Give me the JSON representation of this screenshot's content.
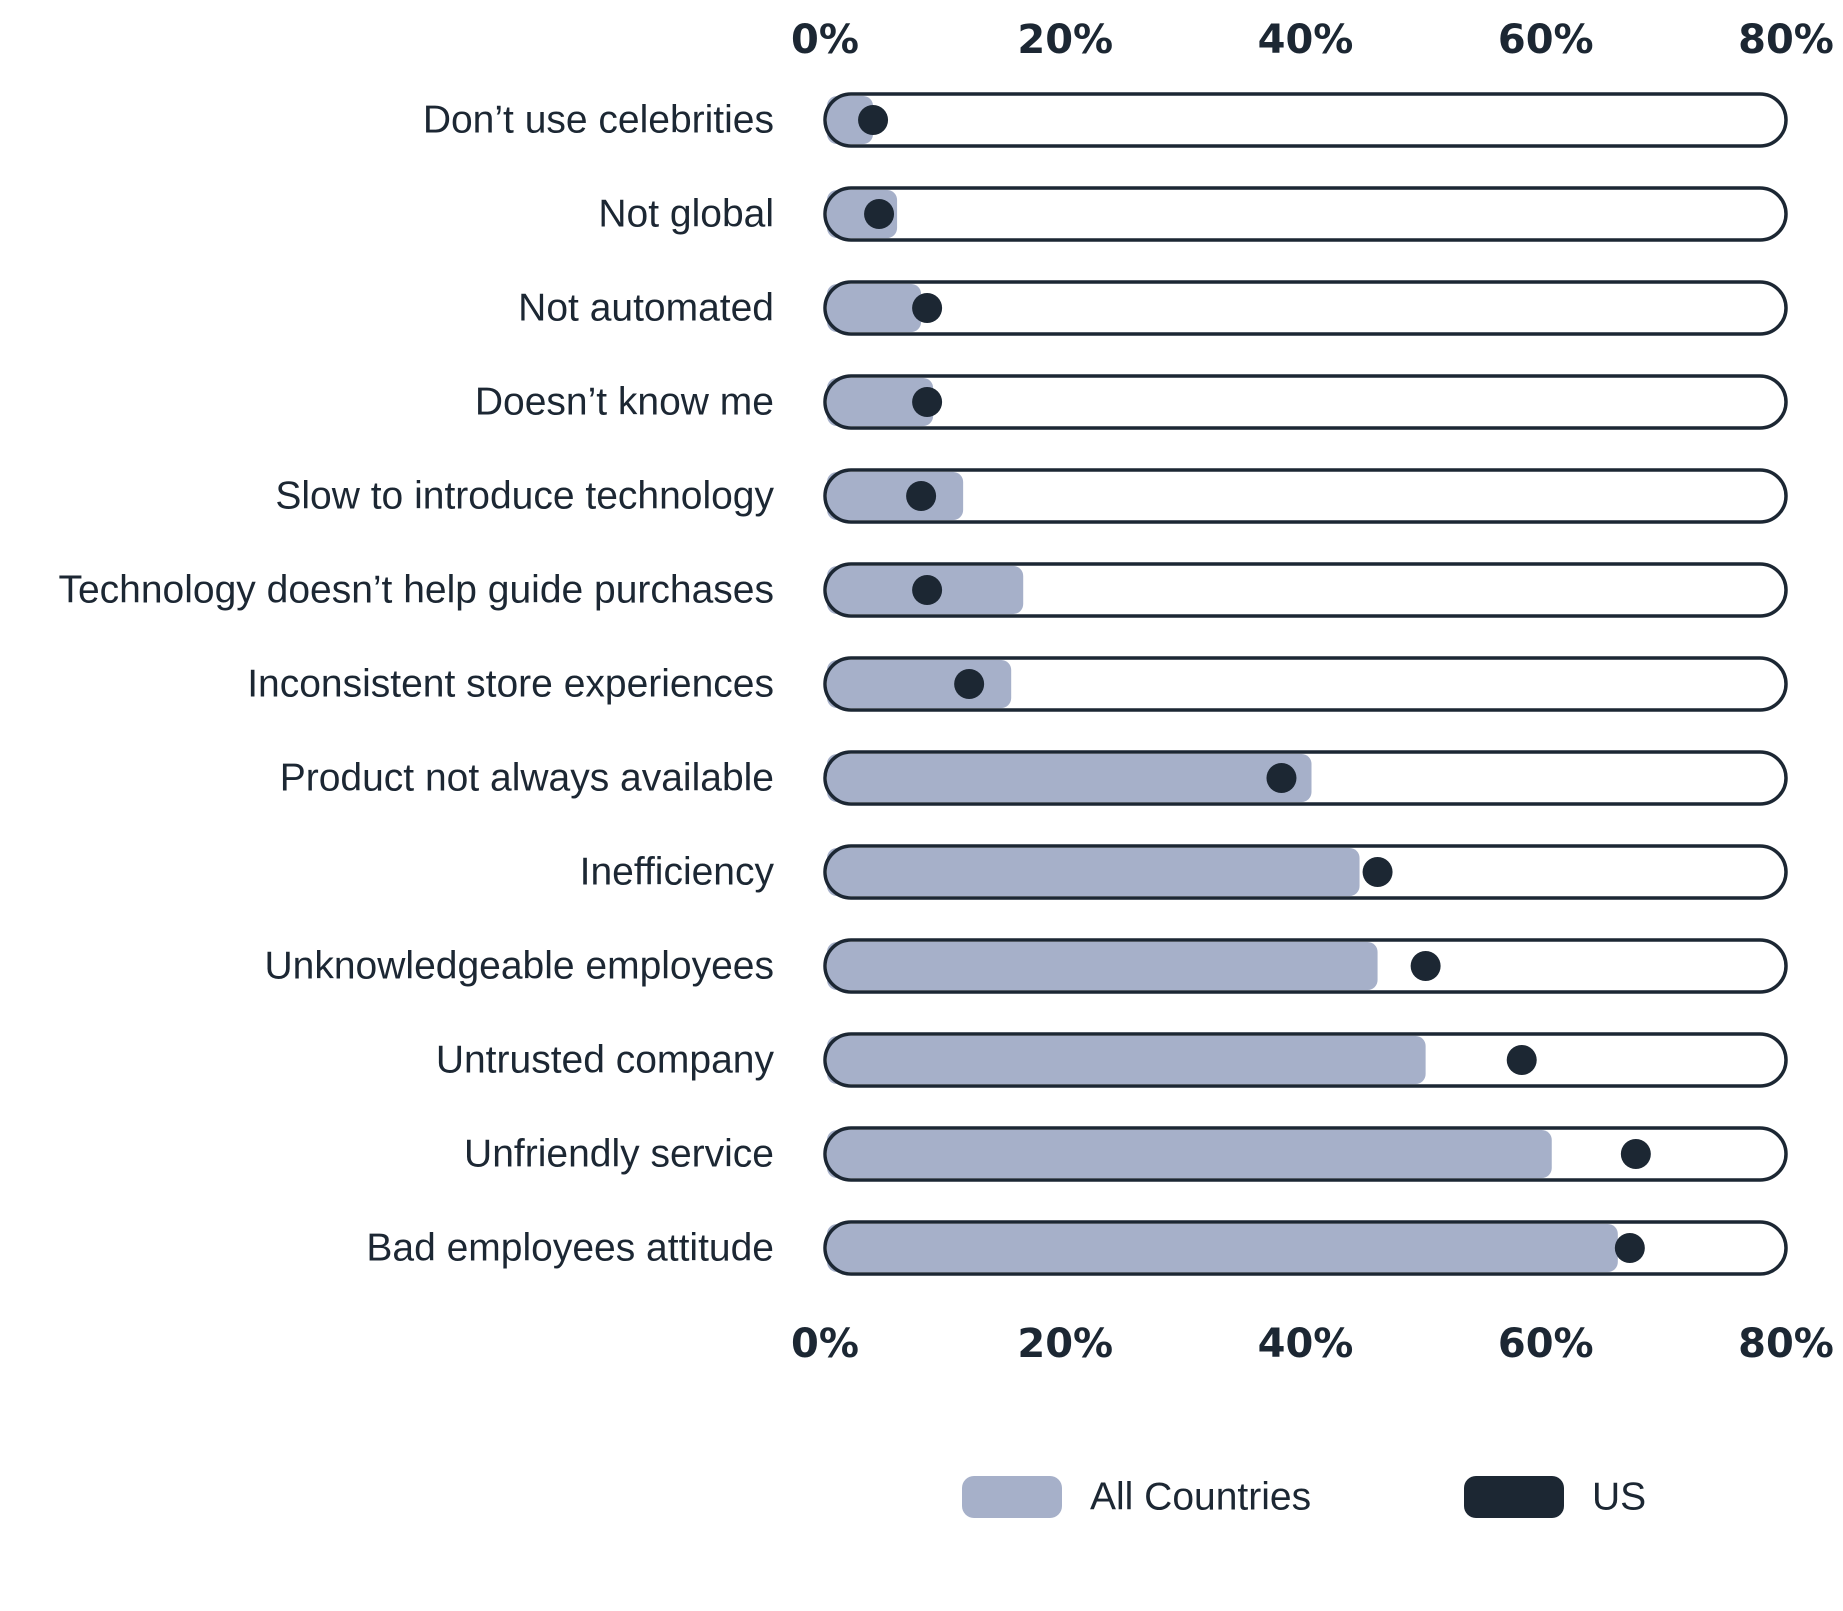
{
  "chart_data": {
    "type": "bar",
    "orientation": "horizontal",
    "categories": [
      "Don’t use celebrities",
      "Not global",
      "Not automated",
      "Doesn’t know me",
      "Slow to introduce technology",
      "Technology doesn’t help guide purchases",
      "Inconsistent store experiences",
      "Product not always available",
      "Inefficiency",
      "Unknowledgeable employees",
      "Untrusted company",
      "Unfriendly service",
      "Bad employees attitude"
    ],
    "series": [
      {
        "name": "All Countries",
        "marker": "bar",
        "color": "#a6b0c9",
        "values": [
          4,
          6,
          8,
          9,
          11.5,
          16.5,
          15.5,
          40.5,
          44.5,
          46,
          50,
          60.5,
          66
        ]
      },
      {
        "name": "US",
        "marker": "dot",
        "color": "#1c2733",
        "values": [
          4,
          4.5,
          8.5,
          8.5,
          8,
          8.5,
          12,
          38,
          46,
          50,
          58,
          67.5,
          67
        ]
      }
    ],
    "x_ticks": [
      "0%",
      "20%",
      "40%",
      "60%",
      "80%"
    ],
    "xlim": [
      0,
      80
    ],
    "x_axis_position": "top and bottom",
    "legend_position": "bottom",
    "grid": false,
    "colors": {
      "track_border": "#1c2733",
      "track_fill": "#ffffff",
      "text": "#1c2733"
    }
  }
}
